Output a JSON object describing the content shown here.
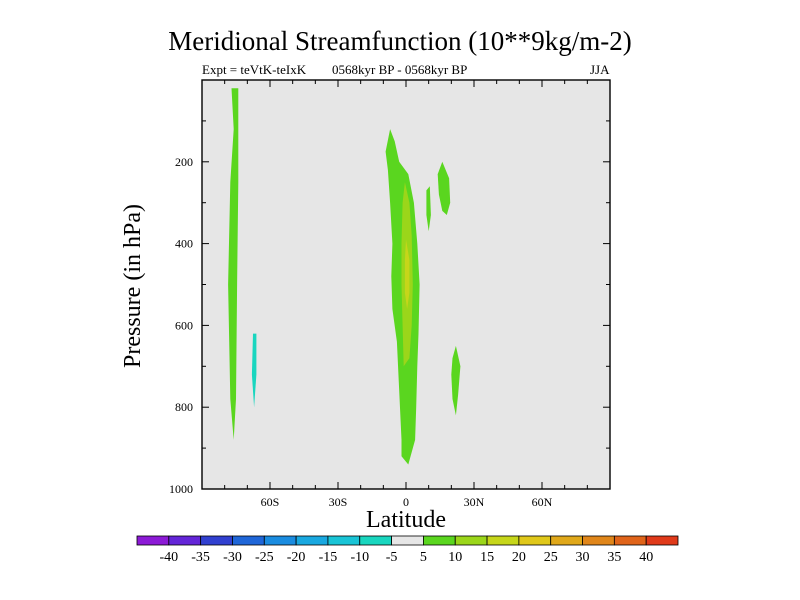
{
  "chart_data": {
    "type": "heatmap",
    "title": "Meridional Streamfunction (10**9kg/m-2)",
    "subtitle_left": "Expt = teVtK-teIxK",
    "subtitle_center": "0568kyr BP - 0568kyr BP",
    "subtitle_right": "JJA",
    "xlabel": "Latitude",
    "ylabel": "Pressure (in hPa)",
    "xlim": [
      -90,
      90
    ],
    "ylim": [
      1000,
      0
    ],
    "x_ticks": [
      {
        "value": -60,
        "label": "60S"
      },
      {
        "value": -30,
        "label": "30S"
      },
      {
        "value": 0,
        "label": "0"
      },
      {
        "value": 30,
        "label": "30N"
      },
      {
        "value": 60,
        "label": "60N"
      }
    ],
    "y_ticks": [
      {
        "value": 200,
        "label": "200"
      },
      {
        "value": 400,
        "label": "400"
      },
      {
        "value": 600,
        "label": "600"
      },
      {
        "value": 800,
        "label": "800"
      },
      {
        "value": 1000,
        "label": "1000"
      }
    ],
    "background_color": "#e6e6e6",
    "colorbar": {
      "labels": [
        "-40",
        "-35",
        "-30",
        "-25",
        "-20",
        "-15",
        "-10",
        "-5",
        "5",
        "10",
        "15",
        "20",
        "25",
        "30",
        "35",
        "40"
      ],
      "colors": [
        "#8c1ad6",
        "#6425d8",
        "#3140d0",
        "#1f66d8",
        "#1a8ce0",
        "#19a8e0",
        "#19c4d6",
        "#19d6bf",
        "#e6e6e6",
        "#5ad61f",
        "#9bd61a",
        "#c6d61a",
        "#e0c81a",
        "#e0a81a",
        "#e0861a",
        "#e0641a",
        "#e03a1a"
      ]
    },
    "regions": [
      {
        "name": "60S-positive-column",
        "value": 5,
        "points": [
          [
            -77,
            20
          ],
          [
            -76,
            120
          ],
          [
            -77.5,
            250
          ],
          [
            -78.5,
            500
          ],
          [
            -77.5,
            780
          ],
          [
            -76,
            880
          ],
          [
            -75,
            780
          ],
          [
            -74.5,
            500
          ],
          [
            -74,
            250
          ],
          [
            -74,
            20
          ]
        ]
      },
      {
        "name": "60S-negative-column",
        "value": -5,
        "points": [
          [
            -69,
            0
          ],
          [
            -69.5,
            200
          ],
          [
            -70.5,
            500
          ],
          [
            -71,
            800
          ],
          [
            -69.5,
            920
          ],
          [
            -65,
            950
          ],
          [
            -62.5,
            880
          ],
          [
            -62,
            600
          ],
          [
            -62.5,
            300
          ],
          [
            -63,
            0
          ]
        ]
      },
      {
        "name": "60S-core",
        "value": -10,
        "points": [
          [
            -67.5,
            620
          ],
          [
            -68,
            720
          ],
          [
            -67,
            800
          ],
          [
            -66,
            720
          ],
          [
            -66,
            620
          ]
        ]
      },
      {
        "name": "eq-negative-column",
        "value": -5,
        "points": [
          [
            -16,
            160
          ],
          [
            -14,
            140
          ],
          [
            -11,
            150
          ],
          [
            -10,
            200
          ],
          [
            -11,
            290
          ],
          [
            -10.5,
            400
          ],
          [
            -10,
            560
          ],
          [
            -9,
            680
          ],
          [
            -8.5,
            760
          ],
          [
            -8,
            840
          ],
          [
            -10.5,
            930
          ],
          [
            -14,
            940
          ],
          [
            -15.5,
            870
          ],
          [
            -14.5,
            780
          ],
          [
            -14,
            700
          ],
          [
            -15,
            600
          ],
          [
            -13.5,
            480
          ],
          [
            -15,
            400
          ],
          [
            -16,
            300
          ],
          [
            -15.5,
            250
          ]
        ]
      },
      {
        "name": "eq-positive-column",
        "value": 5,
        "points": [
          [
            -9,
            175
          ],
          [
            -7,
            120
          ],
          [
            -5,
            150
          ],
          [
            -3,
            200
          ],
          [
            1,
            230
          ],
          [
            3.5,
            300
          ],
          [
            5,
            400
          ],
          [
            6,
            500
          ],
          [
            5.5,
            620
          ],
          [
            5,
            700
          ],
          [
            4.5,
            800
          ],
          [
            4,
            880
          ],
          [
            1,
            940
          ],
          [
            -2,
            920
          ],
          [
            -2,
            880
          ],
          [
            -3,
            760
          ],
          [
            -4,
            640
          ],
          [
            -6,
            560
          ],
          [
            -6.5,
            480
          ],
          [
            -6,
            400
          ],
          [
            -7,
            300
          ],
          [
            -8,
            220
          ]
        ]
      },
      {
        "name": "eq-core",
        "value": 10,
        "points": [
          [
            -0.5,
            250
          ],
          [
            1.5,
            300
          ],
          [
            2.5,
            380
          ],
          [
            3,
            500
          ],
          [
            2.5,
            600
          ],
          [
            1.5,
            680
          ],
          [
            -1,
            700
          ],
          [
            -1.5,
            600
          ],
          [
            -2,
            500
          ],
          [
            -2,
            400
          ],
          [
            -1.5,
            300
          ]
        ]
      },
      {
        "name": "eq-inner-core",
        "value": 15,
        "points": [
          [
            0,
            390
          ],
          [
            1.5,
            440
          ],
          [
            1.5,
            520
          ],
          [
            0.5,
            560
          ],
          [
            -0.5,
            520
          ],
          [
            -0.5,
            440
          ]
        ]
      },
      {
        "name": "nh-positive-patch",
        "value": 5,
        "points": [
          [
            14,
            230
          ],
          [
            16,
            200
          ],
          [
            19,
            240
          ],
          [
            19.5,
            300
          ],
          [
            18,
            330
          ],
          [
            16,
            320
          ],
          [
            14.5,
            280
          ]
        ]
      },
      {
        "name": "nh-positive-sliver",
        "value": 5,
        "points": [
          [
            9,
            270
          ],
          [
            10.5,
            260
          ],
          [
            11,
            330
          ],
          [
            10,
            370
          ],
          [
            9,
            330
          ]
        ]
      },
      {
        "name": "nh-negative-streak",
        "value": -5,
        "points": [
          [
            34,
            100
          ],
          [
            36.5,
            140
          ],
          [
            36.5,
            220
          ],
          [
            35.5,
            300
          ],
          [
            34.5,
            360
          ],
          [
            33.5,
            470
          ],
          [
            33,
            520
          ],
          [
            32.5,
            470
          ],
          [
            32,
            360
          ],
          [
            31.5,
            280
          ],
          [
            32.5,
            180
          ]
        ]
      },
      {
        "name": "nh-lower-positive",
        "value": 5,
        "points": [
          [
            20.5,
            680
          ],
          [
            22,
            650
          ],
          [
            24,
            700
          ],
          [
            23,
            770
          ],
          [
            22,
            820
          ],
          [
            20.5,
            780
          ],
          [
            20,
            720
          ]
        ]
      },
      {
        "name": "upper-stub",
        "value": -5,
        "points": [
          [
            -8,
            0
          ],
          [
            -7.5,
            30
          ],
          [
            -9,
            30
          ]
        ]
      }
    ]
  }
}
